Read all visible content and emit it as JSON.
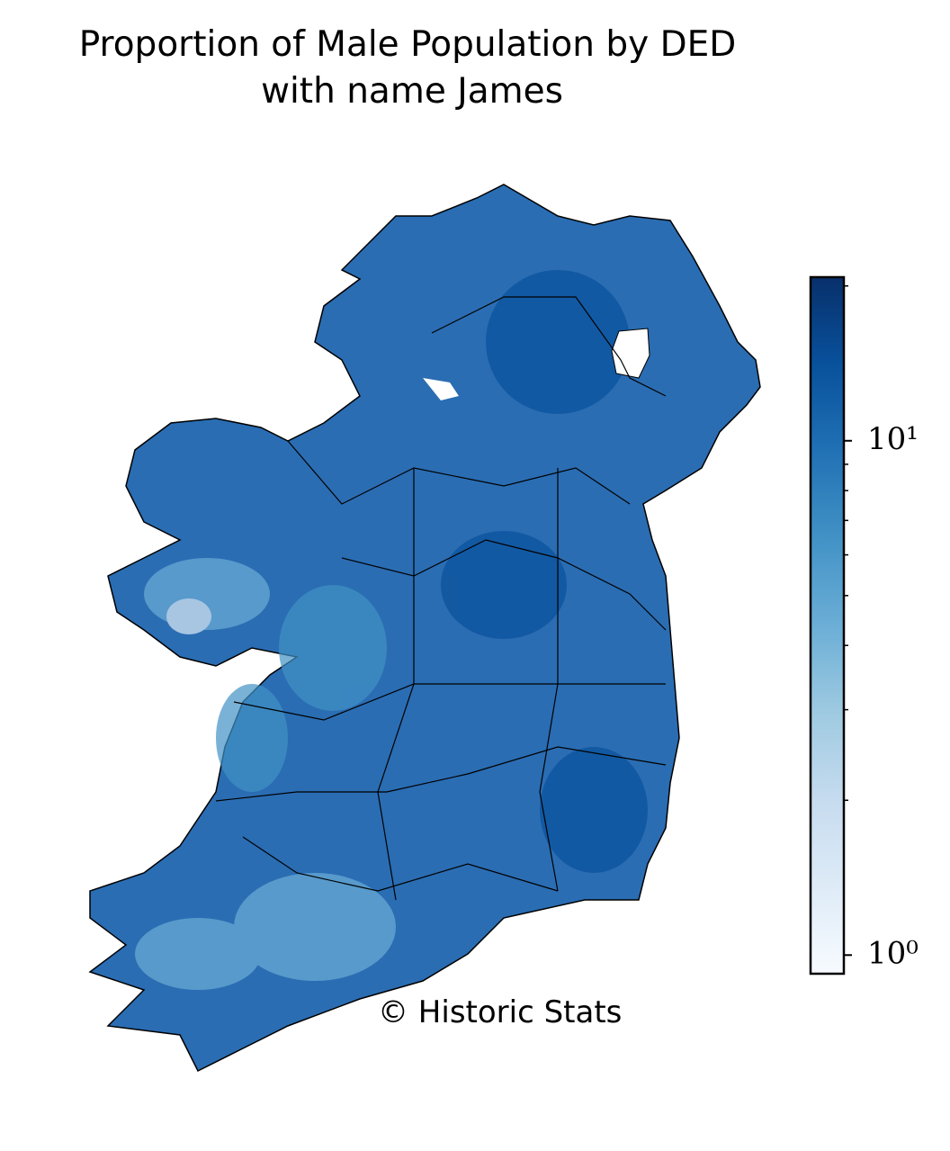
{
  "chart_data": {
    "type": "choropleth",
    "title": "Proportion of Male Population by DED",
    "subtitle": "with name James",
    "credit": "© Historic Stats",
    "log": true,
    "clim": [
      0.92,
      20.8
    ],
    "ticks": [
      {
        "value": 1,
        "label": "10⁰"
      },
      {
        "value": 10,
        "label": "10¹"
      }
    ],
    "minor_ticks": [
      2,
      3,
      4,
      5,
      6,
      7,
      8,
      9,
      20
    ],
    "cmap_colors": [
      "#f7fbff",
      "#deebf7",
      "#c6dbef",
      "#9ecae1",
      "#6baed6",
      "#4292c6",
      "#2171b5",
      "#08519c",
      "#08306b"
    ]
  }
}
